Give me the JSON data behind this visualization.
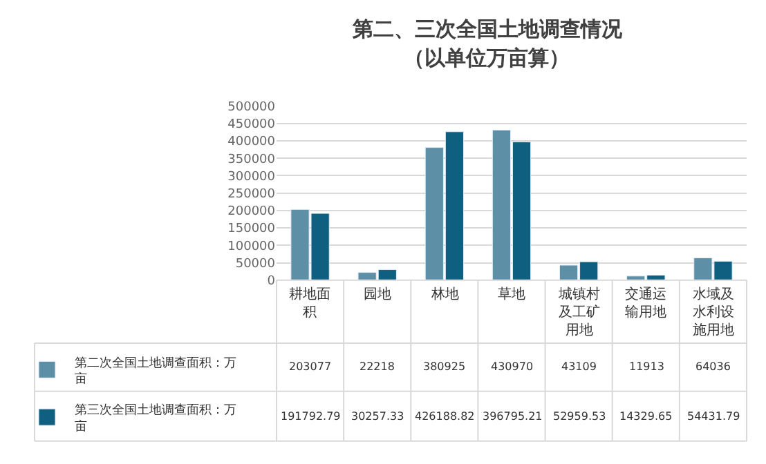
{
  "chart_data": {
    "type": "bar",
    "title": "第二、三次全国土地调查情况",
    "subtitle": "（以单位万亩算）",
    "categories": [
      "耕地面积",
      "园地",
      "林地",
      "草地",
      "城镇村及工矿用地",
      "交通运输用地",
      "水域及水利设施用地"
    ],
    "series": [
      {
        "name": "第二次全国土地调查面积：万亩",
        "color": "#5d8fa6",
        "values": [
          203077,
          22218,
          380925,
          430970,
          43109,
          11913,
          64036
        ]
      },
      {
        "name": "第三次全国土地调查面积：万亩",
        "color": "#0f5f80",
        "values": [
          191792.79,
          30257.33,
          426188.82,
          396795.21,
          52959.53,
          14329.65,
          54431.79
        ]
      }
    ],
    "ylim": [
      0,
      500000
    ],
    "yticks": [
      0,
      50000,
      100000,
      150000,
      200000,
      250000,
      300000,
      350000,
      400000,
      450000,
      500000
    ],
    "grid": "y",
    "legend": "left",
    "data_labels": true
  }
}
